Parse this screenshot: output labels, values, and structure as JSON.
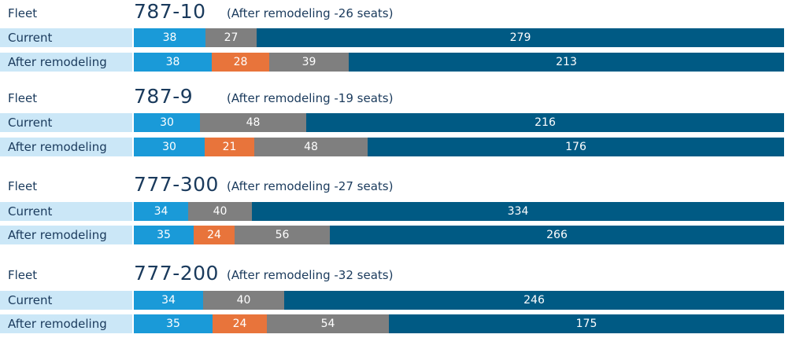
{
  "colors": {
    "label_bg": "#cbe7f7",
    "text": "#1a3a5c",
    "first": "#1a9ad8",
    "premium_economy": "#e8743b",
    "business": "#7f7f7f",
    "economy": "#005a84"
  },
  "chart_data": {
    "type": "bar",
    "orientation": "horizontal-stacked",
    "groups": [
      {
        "label": "Fleet",
        "aircraft": "787-10",
        "note": "(After remodeling -26 seats)",
        "rows": [
          {
            "label": "Current",
            "segments": [
              {
                "value": 38,
                "color": "#1a9ad8"
              },
              {
                "value": 27,
                "color": "#7f7f7f"
              },
              {
                "value": 279,
                "color": "#005a84"
              }
            ]
          },
          {
            "label": "After remodeling",
            "segments": [
              {
                "value": 38,
                "color": "#1a9ad8"
              },
              {
                "value": 28,
                "color": "#e8743b"
              },
              {
                "value": 39,
                "color": "#7f7f7f"
              },
              {
                "value": 213,
                "color": "#005a84"
              }
            ]
          }
        ]
      },
      {
        "label": "Fleet",
        "aircraft": "787-9",
        "note": "(After remodeling -19 seats)",
        "rows": [
          {
            "label": "Current",
            "segments": [
              {
                "value": 30,
                "color": "#1a9ad8"
              },
              {
                "value": 48,
                "color": "#7f7f7f"
              },
              {
                "value": 216,
                "color": "#005a84"
              }
            ]
          },
          {
            "label": "After remodeling",
            "segments": [
              {
                "value": 30,
                "color": "#1a9ad8"
              },
              {
                "value": 21,
                "color": "#e8743b"
              },
              {
                "value": 48,
                "color": "#7f7f7f"
              },
              {
                "value": 176,
                "color": "#005a84"
              }
            ]
          }
        ]
      },
      {
        "label": "Fleet",
        "aircraft": "777-300",
        "note": "(After remodeling -27 seats)",
        "rows": [
          {
            "label": "Current",
            "segments": [
              {
                "value": 34,
                "color": "#1a9ad8"
              },
              {
                "value": 40,
                "color": "#7f7f7f"
              },
              {
                "value": 334,
                "color": "#005a84"
              }
            ]
          },
          {
            "label": "After remodeling",
            "segments": [
              {
                "value": 35,
                "color": "#1a9ad8"
              },
              {
                "value": 24,
                "color": "#e8743b"
              },
              {
                "value": 56,
                "color": "#7f7f7f"
              },
              {
                "value": 266,
                "color": "#005a84"
              }
            ]
          }
        ]
      },
      {
        "label": "Fleet",
        "aircraft": "777-200",
        "note": "(After remodeling -32 seats)",
        "rows": [
          {
            "label": "Current",
            "segments": [
              {
                "value": 34,
                "color": "#1a9ad8"
              },
              {
                "value": 40,
                "color": "#7f7f7f"
              },
              {
                "value": 246,
                "color": "#005a84"
              }
            ]
          },
          {
            "label": "After remodeling",
            "segments": [
              {
                "value": 35,
                "color": "#1a9ad8"
              },
              {
                "value": 24,
                "color": "#e8743b"
              },
              {
                "value": 54,
                "color": "#7f7f7f"
              },
              {
                "value": 175,
                "color": "#005a84"
              }
            ]
          }
        ]
      }
    ]
  }
}
